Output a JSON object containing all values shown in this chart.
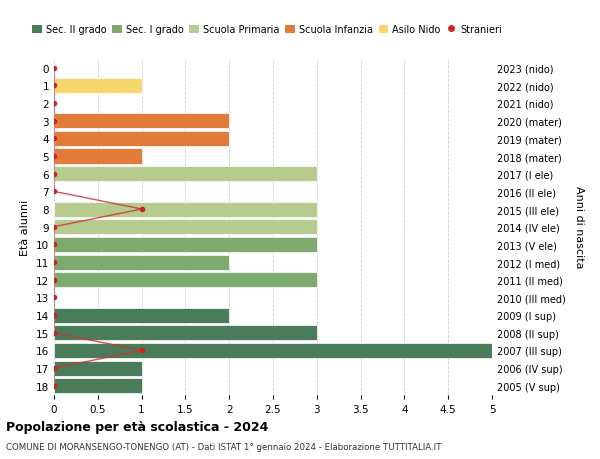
{
  "ages": [
    18,
    17,
    16,
    15,
    14,
    13,
    12,
    11,
    10,
    9,
    8,
    7,
    6,
    5,
    4,
    3,
    2,
    1,
    0
  ],
  "years": [
    "2005 (V sup)",
    "2006 (IV sup)",
    "2007 (III sup)",
    "2008 (II sup)",
    "2009 (I sup)",
    "2010 (III med)",
    "2011 (II med)",
    "2012 (I med)",
    "2013 (V ele)",
    "2014 (IV ele)",
    "2015 (III ele)",
    "2016 (II ele)",
    "2017 (I ele)",
    "2018 (mater)",
    "2019 (mater)",
    "2020 (mater)",
    "2021 (nido)",
    "2022 (nido)",
    "2023 (nido)"
  ],
  "bar_values": [
    1,
    1,
    5,
    3,
    2,
    0,
    3,
    2,
    3,
    3,
    3,
    0,
    3,
    1,
    2,
    2,
    0,
    1,
    0
  ],
  "bar_colors": [
    "#4a7c59",
    "#4a7c59",
    "#4a7c59",
    "#4a7c59",
    "#4a7c59",
    "#4a7c59",
    "#7eaa6d",
    "#7eaa6d",
    "#7eaa6d",
    "#b5cc8e",
    "#b5cc8e",
    "#b5cc8e",
    "#b5cc8e",
    "#e07b39",
    "#e07b39",
    "#e07b39",
    "#f5d76e",
    "#f5d76e",
    "#f5d76e"
  ],
  "stranieri_x": [
    0,
    0,
    1,
    0,
    0,
    0,
    0,
    0,
    0,
    0,
    1,
    0,
    0,
    0,
    0,
    0,
    0,
    0,
    0
  ],
  "title": "Popolazione per età scolastica - 2024",
  "subtitle": "COMUNE DI MORANSENGO-TONENGO (AT) - Dati ISTAT 1° gennaio 2024 - Elaborazione TUTTITALIA.IT",
  "ylabel_left": "Età alunni",
  "ylabel_right": "Anni di nascita",
  "xlim": [
    0,
    5.0
  ],
  "xticks": [
    0,
    0.5,
    1.0,
    1.5,
    2.0,
    2.5,
    3.0,
    3.5,
    4.0,
    4.5,
    5.0
  ],
  "legend_labels": [
    "Sec. II grado",
    "Sec. I grado",
    "Scuola Primaria",
    "Scuola Infanzia",
    "Asilo Nido",
    "Stranieri"
  ],
  "legend_colors": [
    "#4a7c59",
    "#7eaa6d",
    "#b5cc8e",
    "#e07b39",
    "#f5d76e",
    "#cc2222"
  ],
  "bg_color": "#ffffff",
  "grid_color": "#cccccc",
  "bar_height": 0.85
}
